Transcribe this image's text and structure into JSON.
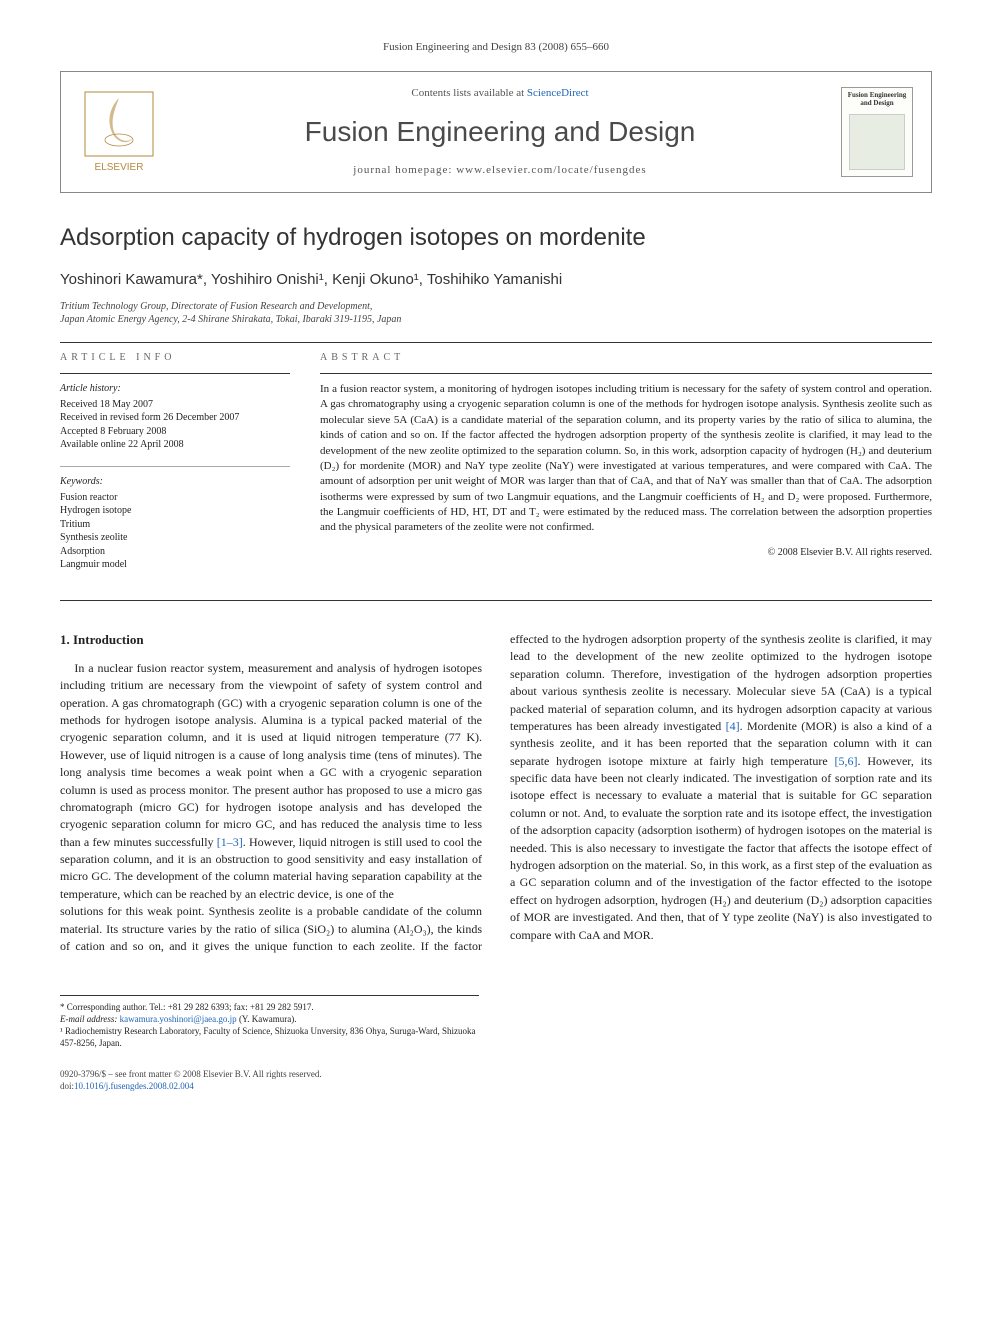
{
  "citation": "Fusion Engineering and Design 83 (2008) 655–660",
  "header": {
    "contents_prefix": "Contents lists available at ",
    "contents_link": "ScienceDirect",
    "journal_name": "Fusion Engineering and Design",
    "homepage_label": "journal homepage: ",
    "homepage_url": "www.elsevier.com/locate/fusengdes",
    "publisher_label": "ELSEVIER",
    "cover_label": "Fusion Engineering and Design"
  },
  "title": "Adsorption capacity of hydrogen isotopes on mordenite",
  "authors": "Yoshinori Kawamura*, Yoshihiro Onishi¹, Kenji Okuno¹, Toshihiko Yamanishi",
  "affiliation": "Tritium Technology Group, Directorate of Fusion Research and Development,\nJapan Atomic Energy Agency, 2-4 Shirane Shirakata, Tokai, Ibaraki 319-1195, Japan",
  "article_info": {
    "label": "ARTICLE INFO",
    "history_heading": "Article history:",
    "history": [
      "Received 18 May 2007",
      "Received in revised form 26 December 2007",
      "Accepted 8 February 2008",
      "Available online 22 April 2008"
    ],
    "keywords_heading": "Keywords:",
    "keywords": [
      "Fusion reactor",
      "Hydrogen isotope",
      "Tritium",
      "Synthesis zeolite",
      "Adsorption",
      "Langmuir model"
    ]
  },
  "abstract": {
    "label": "ABSTRACT",
    "text": "In a fusion reactor system, a monitoring of hydrogen isotopes including tritium is necessary for the safety of system control and operation. A gas chromatography using a cryogenic separation column is one of the methods for hydrogen isotope analysis. Synthesis zeolite such as molecular sieve 5A (CaA) is a candidate material of the separation column, and its property varies by the ratio of silica to alumina, the kinds of cation and so on. If the factor affected the hydrogen adsorption property of the synthesis zeolite is clarified, it may lead to the development of the new zeolite optimized to the separation column. So, in this work, adsorption capacity of hydrogen (H₂) and deuterium (D₂) for mordenite (MOR) and NaY type zeolite (NaY) were investigated at various temperatures, and were compared with CaA. The amount of adsorption per unit weight of MOR was larger than that of CaA, and that of NaY was smaller than that of CaA. The adsorption isotherms were expressed by sum of two Langmuir equations, and the Langmuir coefficients of H₂ and D₂ were proposed. Furthermore, the Langmuir coefficients of HD, HT, DT and T₂ were estimated by the reduced mass. The correlation between the adsorption properties and the physical parameters of the zeolite were not confirmed.",
    "copyright": "© 2008 Elsevier B.V. All rights reserved."
  },
  "intro": {
    "heading": "1. Introduction",
    "col1": "In a nuclear fusion reactor system, measurement and analysis of hydrogen isotopes including tritium are necessary from the viewpoint of safety of system control and operation. A gas chromatograph (GC) with a cryogenic separation column is one of the methods for hydrogen isotope analysis. Alumina is a typical packed material of the cryogenic separation column, and it is used at liquid nitrogen temperature (77 K). However, use of liquid nitrogen is a cause of long analysis time (tens of minutes). The long analysis time becomes a weak point when a GC with a cryogenic separation column is used as process monitor. The present author has proposed to use a micro gas chromatograph (micro GC) for hydrogen isotope analysis and has developed the cryogenic separation column for micro GC, and has reduced the analysis time to less than a few minutes successfully [1–3]. However, liquid nitrogen is still used to cool the separation column, and it is an obstruction to good sensitivity and easy installation of micro GC. The development of the column material having separation capability at the temperature, which can be reached by an electric device, is one of the",
    "col2": "solutions for this weak point. Synthesis zeolite is a probable candidate of the column material. Its structure varies by the ratio of silica (SiO₂) to alumina (Al₂O₃), the kinds of cation and so on, and it gives the unique function to each zeolite. If the factor effected to the hydrogen adsorption property of the synthesis zeolite is clarified, it may lead to the development of the new zeolite optimized to the hydrogen isotope separation column. Therefore, investigation of the hydrogen adsorption properties about various synthesis zeolite is necessary. Molecular sieve 5A (CaA) is a typical packed material of separation column, and its hydrogen adsorption capacity at various temperatures has been already investigated [4]. Mordenite (MOR) is also a kind of a synthesis zeolite, and it has been reported that the separation column with it can separate hydrogen isotope mixture at fairly high temperature [5,6]. However, its specific data have been not clearly indicated. The investigation of sorption rate and its isotope effect is necessary to evaluate a material that is suitable for GC separation column or not. And, to evaluate the sorption rate and its isotope effect, the investigation of the adsorption capacity (adsorption isotherm) of hydrogen isotopes on the material is needed. This is also necessary to investigate the factor that affects the isotope effect of hydrogen adsorption on the material. So, in this work, as a first step of the evaluation as a GC separation column and of the investigation of the factor effected to the isotope effect on hydrogen adsorption, hydrogen (H₂) and deuterium (D₂) adsorption capacities of MOR are investigated. And then, that of Y type zeolite (NaY) is also investigated to compare with CaA and MOR."
  },
  "footnotes": {
    "corr_label": "* Corresponding author. Tel.: +81 29 282 6393; fax: +81 29 282 5917.",
    "email_label": "E-mail address: ",
    "email": "kawamura.yoshinori@jaea.go.jp",
    "email_name": " (Y. Kawamura).",
    "note1": "¹ Radiochemistry Research Laboratory, Faculty of Science, Shizuoka Unversity, 836 Ohya, Suruga-Ward, Shizuoka 457-8256, Japan."
  },
  "bottom": {
    "issn_line": "0920-3796/$ – see front matter © 2008 Elsevier B.V. All rights reserved.",
    "doi_label": "doi:",
    "doi": "10.1016/j.fusengdes.2008.02.004"
  },
  "colors": {
    "link": "#2165b6",
    "text": "#222222",
    "rule": "#333333",
    "border": "#888888"
  }
}
